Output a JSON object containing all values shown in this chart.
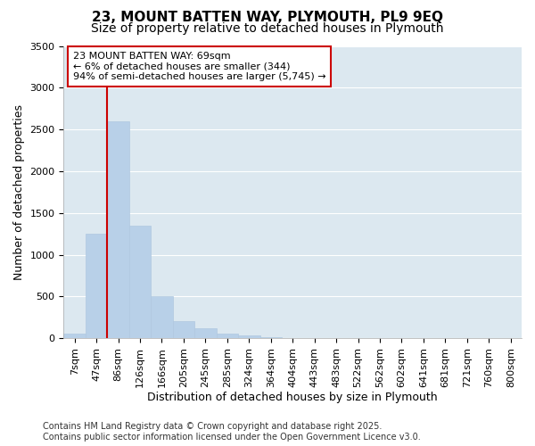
{
  "title_line1": "23, MOUNT BATTEN WAY, PLYMOUTH, PL9 9EQ",
  "title_line2": "Size of property relative to detached houses in Plymouth",
  "xlabel": "Distribution of detached houses by size in Plymouth",
  "ylabel": "Number of detached properties",
  "categories": [
    "7sqm",
    "47sqm",
    "86sqm",
    "126sqm",
    "166sqm",
    "205sqm",
    "245sqm",
    "285sqm",
    "324sqm",
    "364sqm",
    "404sqm",
    "443sqm",
    "483sqm",
    "522sqm",
    "562sqm",
    "602sqm",
    "641sqm",
    "681sqm",
    "721sqm",
    "760sqm",
    "800sqm"
  ],
  "values": [
    55,
    1250,
    2600,
    1350,
    500,
    200,
    120,
    55,
    30,
    15,
    5,
    0,
    0,
    0,
    0,
    0,
    0,
    0,
    0,
    0,
    0
  ],
  "bar_color": "#b8d0e8",
  "bar_edge_color": "#b0c8e0",
  "figure_bg": "#ffffff",
  "axes_bg": "#dce8f0",
  "grid_color": "#ffffff",
  "vline_color": "#cc0000",
  "annotation_text": "23 MOUNT BATTEN WAY: 69sqm\n← 6% of detached houses are smaller (344)\n94% of semi-detached houses are larger (5,745) →",
  "annotation_box_color": "#ffffff",
  "annotation_box_edge": "#cc0000",
  "ylim": [
    0,
    3500
  ],
  "yticks": [
    0,
    500,
    1000,
    1500,
    2000,
    2500,
    3000,
    3500
  ],
  "footer_line1": "Contains HM Land Registry data © Crown copyright and database right 2025.",
  "footer_line2": "Contains public sector information licensed under the Open Government Licence v3.0.",
  "title_fontsize": 11,
  "subtitle_fontsize": 10,
  "axis_label_fontsize": 9,
  "tick_fontsize": 8,
  "annotation_fontsize": 8,
  "footer_fontsize": 7
}
